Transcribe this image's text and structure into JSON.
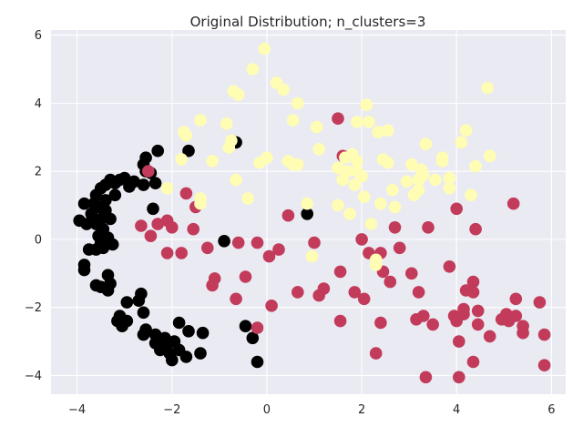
{
  "chart_data": {
    "type": "scatter",
    "title": "Original Distribution; n_clusters=3",
    "xlabel": "",
    "ylabel": "",
    "xlim": [
      -4.55,
      6.3
    ],
    "ylim": [
      -4.55,
      6.15
    ],
    "xticks": [
      -4,
      -2,
      0,
      2,
      4,
      6
    ],
    "yticks": [
      -4,
      -2,
      0,
      2,
      4,
      6
    ],
    "xtick_labels": [
      "−4",
      "−2",
      "0",
      "2",
      "4",
      "6"
    ],
    "ytick_labels": [
      "−4",
      "−2",
      "0",
      "2",
      "4",
      "6"
    ],
    "grid": true,
    "background": "#eaeaf2",
    "grid_color": "#ffffff",
    "series": [
      {
        "color": "#000000",
        "points": [
          [
            -2.3,
            2.6
          ],
          [
            -2.55,
            2.4
          ],
          [
            -2.6,
            2.2
          ],
          [
            -2.55,
            2.0
          ],
          [
            -2.45,
            1.95
          ],
          [
            -2.35,
            1.65
          ],
          [
            -2.6,
            1.6
          ],
          [
            -2.8,
            1.7
          ],
          [
            -2.9,
            1.55
          ],
          [
            -3.0,
            1.8
          ],
          [
            -3.1,
            1.75
          ],
          [
            -3.2,
            1.65
          ],
          [
            -3.3,
            1.75
          ],
          [
            -3.4,
            1.6
          ],
          [
            -3.5,
            1.5
          ],
          [
            -3.6,
            1.3
          ],
          [
            -3.2,
            1.3
          ],
          [
            -3.4,
            1.15
          ],
          [
            -3.65,
            1.05
          ],
          [
            -3.85,
            1.05
          ],
          [
            -3.55,
            0.95
          ],
          [
            -3.4,
            0.85
          ],
          [
            -3.7,
            0.75
          ],
          [
            -3.5,
            0.6
          ],
          [
            -3.3,
            0.6
          ],
          [
            -3.6,
            0.45
          ],
          [
            -3.8,
            0.45
          ],
          [
            -3.95,
            0.55
          ],
          [
            -3.45,
            0.3
          ],
          [
            -3.55,
            0.1
          ],
          [
            -3.35,
            0.05
          ],
          [
            -3.5,
            -0.1
          ],
          [
            -3.25,
            -0.15
          ],
          [
            -3.45,
            -0.25
          ],
          [
            -3.6,
            -0.3
          ],
          [
            -3.75,
            -0.3
          ],
          [
            -3.85,
            -0.75
          ],
          [
            -3.85,
            -0.9
          ],
          [
            -3.35,
            -1.05
          ],
          [
            -3.3,
            -1.3
          ],
          [
            -3.5,
            -1.4
          ],
          [
            -3.35,
            -1.5
          ],
          [
            -2.65,
            -1.6
          ],
          [
            -2.7,
            -1.8
          ],
          [
            -2.95,
            -1.85
          ],
          [
            -2.6,
            -2.15
          ],
          [
            -3.1,
            -2.25
          ],
          [
            -3.15,
            -2.4
          ],
          [
            -2.95,
            -2.4
          ],
          [
            -3.05,
            -2.55
          ],
          [
            -2.55,
            -2.65
          ],
          [
            -2.6,
            -2.8
          ],
          [
            -2.35,
            -2.8
          ],
          [
            -2.15,
            -2.9
          ],
          [
            -1.85,
            -2.45
          ],
          [
            -1.65,
            -2.7
          ],
          [
            -2.35,
            -3.05
          ],
          [
            -2.1,
            -3.1
          ],
          [
            -1.95,
            -3.0
          ],
          [
            -2.25,
            -3.25
          ],
          [
            -2.05,
            -3.35
          ],
          [
            -1.85,
            -3.25
          ],
          [
            -2.0,
            -3.55
          ],
          [
            -1.7,
            -3.45
          ],
          [
            -1.4,
            -3.35
          ],
          [
            -1.35,
            -2.75
          ],
          [
            -1.65,
            2.6
          ],
          [
            -0.65,
            2.85
          ],
          [
            -0.45,
            -2.55
          ],
          [
            -0.3,
            -2.9
          ],
          [
            -0.2,
            -3.6
          ],
          [
            -0.9,
            -0.05
          ],
          [
            0.85,
            0.75
          ],
          [
            -2.4,
            0.9
          ],
          [
            -3.6,
            -1.35
          ]
        ]
      },
      {
        "color": "#c23b5a",
        "points": [
          [
            -2.5,
            2.0
          ],
          [
            -2.1,
            0.55
          ],
          [
            -2.3,
            0.45
          ],
          [
            -2.45,
            0.1
          ],
          [
            -2.65,
            0.4
          ],
          [
            -2.0,
            0.35
          ],
          [
            -2.1,
            -0.4
          ],
          [
            -1.8,
            -0.4
          ],
          [
            -1.7,
            1.35
          ],
          [
            -1.5,
            0.95
          ],
          [
            -1.55,
            0.3
          ],
          [
            -1.25,
            -0.25
          ],
          [
            -1.1,
            -1.15
          ],
          [
            -1.15,
            -1.35
          ],
          [
            -0.6,
            -0.1
          ],
          [
            -0.65,
            -1.75
          ],
          [
            -0.45,
            -1.1
          ],
          [
            -0.2,
            -0.1
          ],
          [
            -0.2,
            -2.6
          ],
          [
            0.05,
            -0.5
          ],
          [
            0.1,
            -1.95
          ],
          [
            0.25,
            -0.3
          ],
          [
            0.45,
            0.7
          ],
          [
            0.65,
            -1.55
          ],
          [
            1.0,
            -0.1
          ],
          [
            1.1,
            -1.65
          ],
          [
            1.2,
            -1.45
          ],
          [
            1.5,
            3.55
          ],
          [
            1.6,
            2.45
          ],
          [
            1.55,
            -0.95
          ],
          [
            1.55,
            -2.4
          ],
          [
            1.85,
            -1.55
          ],
          [
            2.0,
            0.0
          ],
          [
            2.05,
            -1.75
          ],
          [
            2.15,
            -0.4
          ],
          [
            2.3,
            -3.35
          ],
          [
            2.4,
            -0.4
          ],
          [
            2.45,
            -0.95
          ],
          [
            2.4,
            -2.45
          ],
          [
            2.6,
            -1.25
          ],
          [
            2.7,
            0.35
          ],
          [
            2.8,
            -0.25
          ],
          [
            3.05,
            -1.0
          ],
          [
            3.15,
            -2.35
          ],
          [
            3.2,
            -1.55
          ],
          [
            3.3,
            -2.25
          ],
          [
            3.35,
            -4.05
          ],
          [
            3.4,
            0.35
          ],
          [
            3.5,
            -2.5
          ],
          [
            3.85,
            -0.8
          ],
          [
            3.95,
            -2.25
          ],
          [
            4.0,
            -2.4
          ],
          [
            4.0,
            0.9
          ],
          [
            4.05,
            -3.0
          ],
          [
            4.05,
            -4.05
          ],
          [
            4.15,
            -2.2
          ],
          [
            4.15,
            -2.05
          ],
          [
            4.2,
            -1.5
          ],
          [
            4.35,
            -1.25
          ],
          [
            4.35,
            -1.55
          ],
          [
            4.35,
            -3.6
          ],
          [
            4.4,
            0.3
          ],
          [
            4.45,
            -2.1
          ],
          [
            4.45,
            -2.5
          ],
          [
            4.7,
            -2.85
          ],
          [
            4.95,
            -2.35
          ],
          [
            5.05,
            -2.2
          ],
          [
            5.1,
            -2.4
          ],
          [
            5.2,
            1.05
          ],
          [
            5.25,
            -1.75
          ],
          [
            5.25,
            -2.25
          ],
          [
            5.4,
            -2.55
          ],
          [
            5.4,
            -2.75
          ],
          [
            5.75,
            -1.85
          ],
          [
            5.85,
            -2.8
          ],
          [
            5.85,
            -3.7
          ]
        ]
      },
      {
        "color": "#fffdb3",
        "points": [
          [
            -2.1,
            1.5
          ],
          [
            -1.8,
            2.35
          ],
          [
            -1.75,
            3.15
          ],
          [
            -1.7,
            3.05
          ],
          [
            -1.4,
            3.5
          ],
          [
            -1.4,
            1.2
          ],
          [
            -1.4,
            1.05
          ],
          [
            -1.15,
            2.3
          ],
          [
            -0.85,
            3.4
          ],
          [
            -0.8,
            2.7
          ],
          [
            -0.75,
            2.9
          ],
          [
            -0.7,
            4.35
          ],
          [
            -0.65,
            1.75
          ],
          [
            -0.6,
            4.25
          ],
          [
            -0.4,
            1.2
          ],
          [
            -0.3,
            5.0
          ],
          [
            -0.15,
            2.25
          ],
          [
            -0.05,
            5.6
          ],
          [
            0.0,
            2.4
          ],
          [
            0.2,
            4.6
          ],
          [
            0.35,
            4.4
          ],
          [
            0.45,
            2.3
          ],
          [
            0.55,
            3.5
          ],
          [
            0.55,
            2.2
          ],
          [
            0.65,
            2.2
          ],
          [
            0.65,
            4.0
          ],
          [
            0.85,
            1.05
          ],
          [
            0.95,
            -0.5
          ],
          [
            1.05,
            3.3
          ],
          [
            1.1,
            2.65
          ],
          [
            1.5,
            2.1
          ],
          [
            1.5,
            1.0
          ],
          [
            1.6,
            1.75
          ],
          [
            1.65,
            2.4
          ],
          [
            1.7,
            2.0
          ],
          [
            1.75,
            0.75
          ],
          [
            1.8,
            2.5
          ],
          [
            1.85,
            1.6
          ],
          [
            1.9,
            3.45
          ],
          [
            1.9,
            2.3
          ],
          [
            1.9,
            2.0
          ],
          [
            2.0,
            1.85
          ],
          [
            2.05,
            1.25
          ],
          [
            2.1,
            3.95
          ],
          [
            2.15,
            3.45
          ],
          [
            2.2,
            0.45
          ],
          [
            2.3,
            -0.6
          ],
          [
            2.3,
            -0.75
          ],
          [
            2.35,
            3.15
          ],
          [
            2.4,
            1.05
          ],
          [
            2.45,
            2.35
          ],
          [
            2.55,
            3.2
          ],
          [
            2.55,
            2.25
          ],
          [
            2.65,
            1.45
          ],
          [
            2.7,
            0.95
          ],
          [
            2.95,
            1.7
          ],
          [
            3.05,
            2.2
          ],
          [
            3.1,
            1.3
          ],
          [
            3.2,
            1.45
          ],
          [
            3.2,
            1.75
          ],
          [
            3.25,
            2.05
          ],
          [
            3.3,
            1.9
          ],
          [
            3.35,
            2.8
          ],
          [
            3.55,
            1.75
          ],
          [
            3.7,
            2.3
          ],
          [
            3.7,
            2.4
          ],
          [
            3.85,
            1.5
          ],
          [
            3.85,
            1.8
          ],
          [
            4.1,
            2.85
          ],
          [
            4.2,
            3.2
          ],
          [
            4.3,
            1.3
          ],
          [
            4.4,
            2.15
          ],
          [
            4.65,
            4.45
          ],
          [
            4.7,
            2.45
          ]
        ]
      }
    ]
  }
}
